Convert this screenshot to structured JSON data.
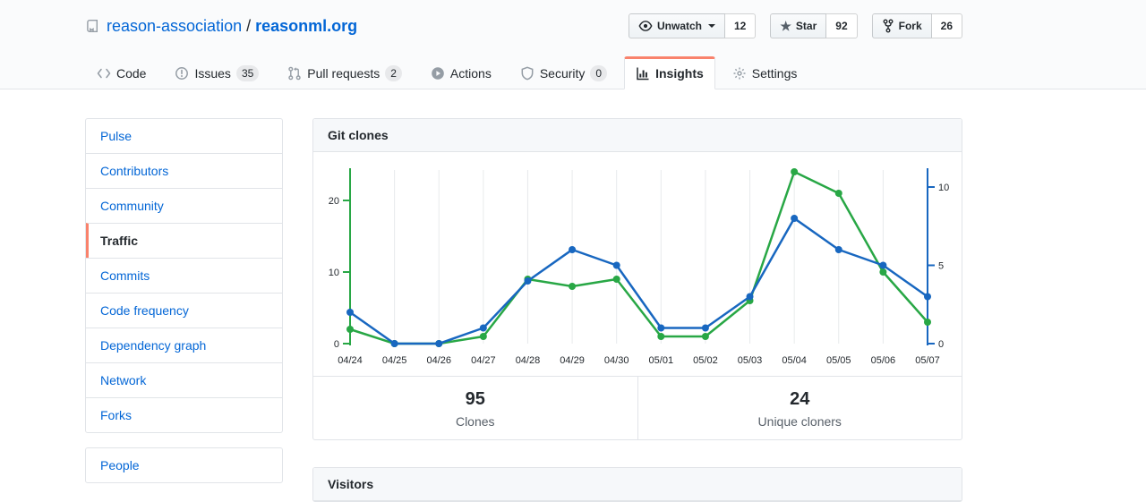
{
  "colors": {
    "accent_orange": "#f9826c",
    "link_blue": "#0366d6",
    "clones_green": "#28a745",
    "unique_blue": "#1867c0"
  },
  "header": {
    "repo_owner": "reason-association",
    "separator": "/",
    "repo_name": "reasonml.org",
    "actions": [
      {
        "label": "Unwatch",
        "count": "12",
        "icon": "eye-icon",
        "has_dropdown": true
      },
      {
        "label": "Star",
        "count": "92",
        "icon": "star-icon"
      },
      {
        "label": "Fork",
        "count": "26",
        "icon": "fork-icon"
      }
    ]
  },
  "tabs": [
    {
      "label": "Code"
    },
    {
      "label": "Issues",
      "count": "35"
    },
    {
      "label": "Pull requests",
      "count": "2"
    },
    {
      "label": "Actions"
    },
    {
      "label": "Security",
      "count": "0"
    },
    {
      "label": "Insights",
      "active": true
    },
    {
      "label": "Settings"
    }
  ],
  "sidebar": {
    "items": [
      {
        "label": "Pulse"
      },
      {
        "label": "Contributors"
      },
      {
        "label": "Community"
      },
      {
        "label": "Traffic",
        "active": true
      },
      {
        "label": "Commits"
      },
      {
        "label": "Code frequency"
      },
      {
        "label": "Dependency graph"
      },
      {
        "label": "Network"
      },
      {
        "label": "Forks"
      }
    ],
    "secondary_items": [
      {
        "label": "People"
      }
    ]
  },
  "clones_card": {
    "title": "Git clones",
    "stats": [
      {
        "value": "95",
        "label": "Clones"
      },
      {
        "value": "24",
        "label": "Unique cloners"
      }
    ]
  },
  "visitors_card": {
    "title": "Visitors"
  },
  "chart_data": {
    "type": "line",
    "title": "Git clones",
    "x": [
      "04/24",
      "04/25",
      "04/26",
      "04/27",
      "04/28",
      "04/29",
      "04/30",
      "05/01",
      "05/02",
      "05/03",
      "05/04",
      "05/05",
      "05/06",
      "05/07"
    ],
    "series": [
      {
        "name": "Clones",
        "axis": "left",
        "color": "#28a745",
        "values": [
          2,
          0,
          0,
          1,
          9,
          8,
          9,
          1,
          1,
          6,
          24,
          21,
          10,
          3
        ]
      },
      {
        "name": "Unique cloners",
        "axis": "right",
        "color": "#1867c0",
        "values": [
          2,
          0,
          0,
          1,
          4,
          6,
          5,
          1,
          1,
          3,
          8,
          6,
          5,
          3
        ]
      }
    ],
    "left_axis": {
      "ticks": [
        0,
        10,
        20
      ],
      "range": [
        0,
        24
      ],
      "color": "#28a745"
    },
    "right_axis": {
      "ticks": [
        0,
        5,
        10
      ],
      "range": [
        0,
        11
      ],
      "color": "#1867c0"
    },
    "grid": "vertical",
    "legend": "none"
  }
}
